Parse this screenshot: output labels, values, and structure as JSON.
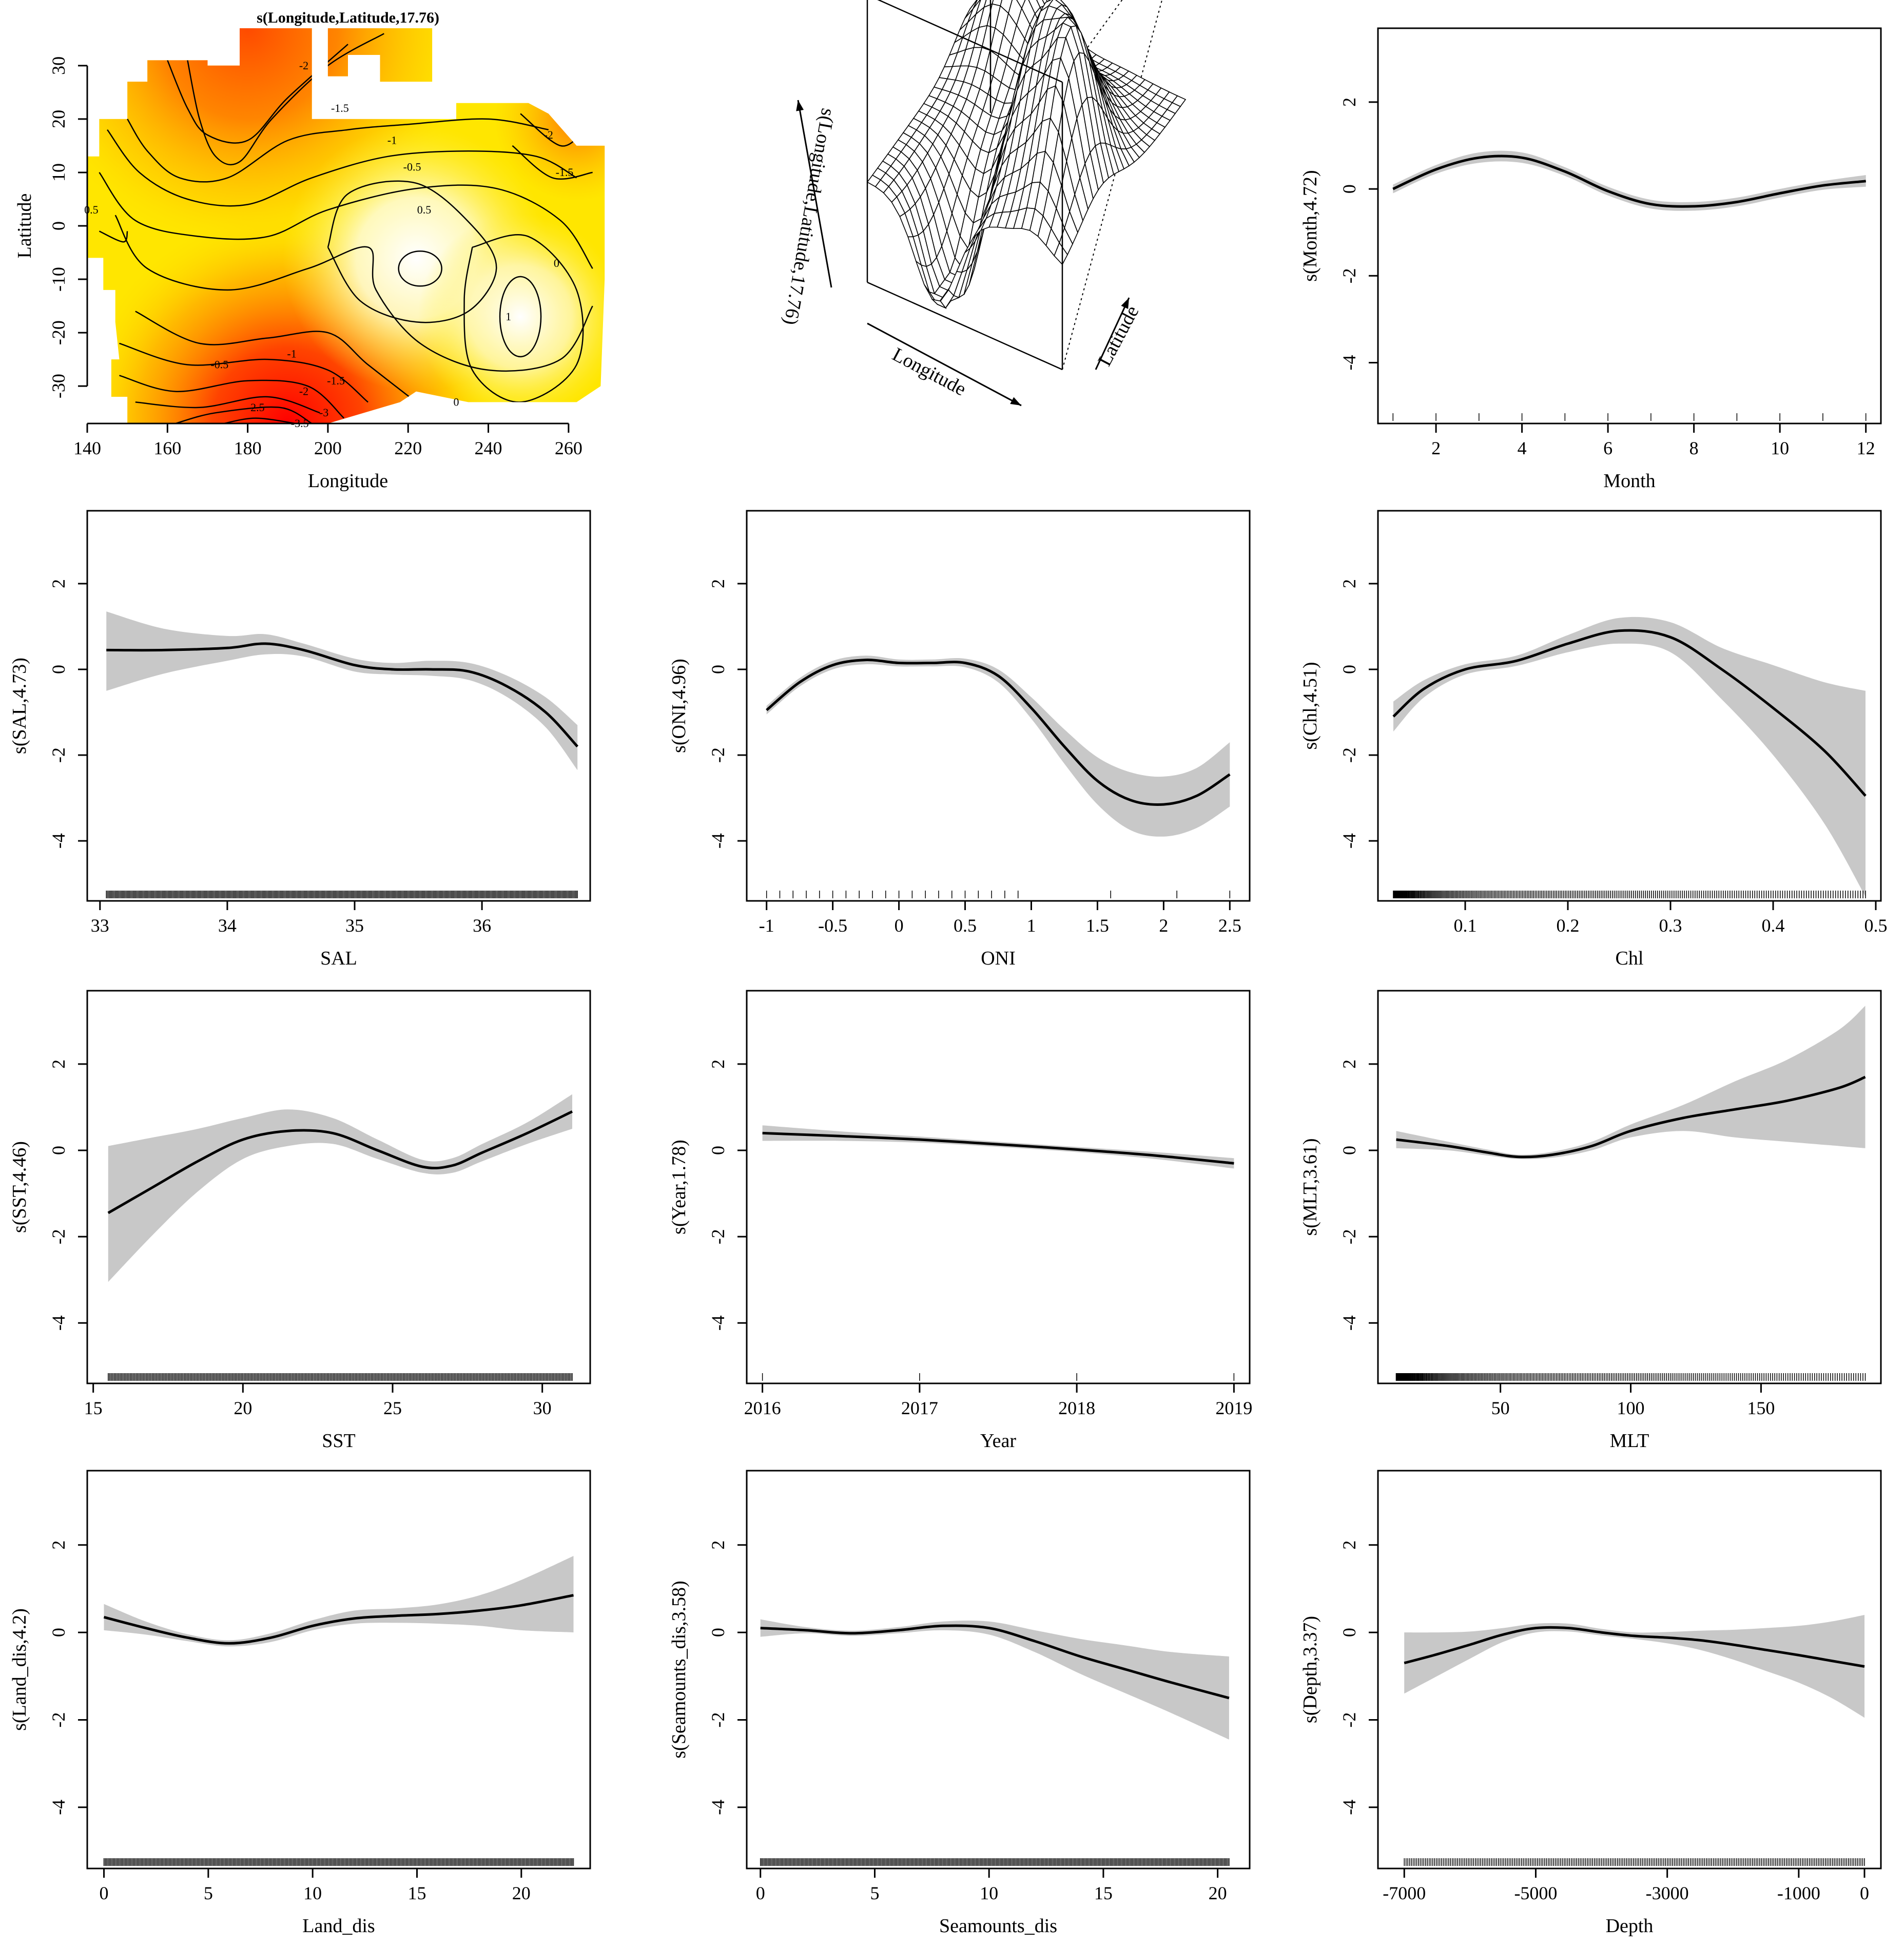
{
  "chart_data": [
    {
      "type": "heatmap",
      "title": "s(Longitude,Latitude,17.76)",
      "xlabel": "Longitude",
      "ylabel": "Latitude",
      "xlim": [
        140,
        270
      ],
      "ylim": [
        -37,
        37
      ],
      "x_ticks": [
        140,
        160,
        180,
        200,
        220,
        240,
        260
      ],
      "y_ticks": [
        -30,
        -20,
        -10,
        0,
        10,
        20,
        30
      ],
      "contour_levels": [
        "-3.5",
        "-3",
        "-2.5",
        "-2",
        "-1.5",
        "-1",
        "-0.5",
        "0",
        "0.5",
        "1"
      ],
      "contour_labels": [
        {
          "text": "-2",
          "lon": 194,
          "lat": 30
        },
        {
          "text": "-1.5",
          "lon": 203,
          "lat": 22
        },
        {
          "text": "-1",
          "lon": 216,
          "lat": 16
        },
        {
          "text": "-0.5",
          "lon": 221,
          "lat": 11
        },
        {
          "text": "0.5",
          "lon": 224,
          "lat": 3
        },
        {
          "text": "0",
          "lon": 257,
          "lat": -7
        },
        {
          "text": "-2",
          "lon": 255,
          "lat": 17
        },
        {
          "text": "-1.5",
          "lon": 259,
          "lat": 10
        },
        {
          "text": "1",
          "lon": 245,
          "lat": -17
        },
        {
          "text": "-0.5",
          "lon": 173,
          "lat": -26
        },
        {
          "text": "-1",
          "lon": 191,
          "lat": -24
        },
        {
          "text": "-1.5",
          "lon": 202,
          "lat": -29
        },
        {
          "text": "-2",
          "lon": 194,
          "lat": -31
        },
        {
          "text": "-2.5",
          "lon": 182,
          "lat": -34
        },
        {
          "text": "-3",
          "lon": 199,
          "lat": -35
        },
        {
          "text": "0",
          "lon": 232,
          "lat": -33
        },
        {
          "text": "0.5",
          "lon": 141,
          "lat": 3
        },
        {
          "text": "-3.5",
          "lon": 193,
          "lat": -37
        }
      ]
    },
    {
      "type": "surface",
      "zlabel": "s(Longitude,Latitude,17.76)",
      "xlabel": "Longitude",
      "ylabel": "Latitude"
    },
    {
      "type": "line",
      "xlabel": "Month",
      "ylabel": "s(Month,4.72)",
      "xlim": [
        0.65,
        12.35
      ],
      "ylim": [
        -5.4,
        3.7
      ],
      "x_ticks": [
        2,
        4,
        6,
        8,
        10,
        12
      ],
      "y_ticks": [
        -4,
        -2,
        0,
        2
      ],
      "x": [
        1,
        2,
        3,
        4,
        5,
        6,
        7,
        8,
        9,
        10,
        11,
        12
      ],
      "fit": [
        0.0,
        0.45,
        0.72,
        0.72,
        0.4,
        -0.05,
        -0.35,
        -0.4,
        -0.3,
        -0.1,
        0.08,
        0.18
      ],
      "lower": [
        -0.1,
        0.35,
        0.6,
        0.6,
        0.3,
        -0.15,
        -0.45,
        -0.5,
        -0.4,
        -0.2,
        -0.02,
        0.05
      ],
      "upper": [
        0.1,
        0.55,
        0.84,
        0.84,
        0.5,
        0.05,
        -0.25,
        -0.3,
        -0.2,
        0.0,
        0.18,
        0.32
      ],
      "rug": [
        1,
        2,
        3,
        4,
        5,
        6,
        7,
        8,
        9,
        10,
        11,
        12
      ]
    },
    {
      "type": "line",
      "xlabel": "SAL",
      "ylabel": "s(SAL,4.73)",
      "xlim": [
        32.9,
        36.85
      ],
      "ylim": [
        -5.4,
        3.7
      ],
      "x_ticks": [
        33,
        34,
        35,
        36
      ],
      "y_ticks": [
        -4,
        -2,
        0,
        2
      ],
      "x": [
        33.05,
        33.5,
        34.0,
        34.3,
        34.6,
        35.0,
        35.3,
        35.6,
        35.9,
        36.2,
        36.5,
        36.75
      ],
      "fit": [
        0.45,
        0.45,
        0.5,
        0.6,
        0.45,
        0.1,
        0.0,
        0.0,
        -0.05,
        -0.4,
        -1.0,
        -1.8
      ],
      "lower": [
        -0.5,
        -0.1,
        0.2,
        0.35,
        0.3,
        -0.05,
        -0.12,
        -0.15,
        -0.25,
        -0.65,
        -1.35,
        -2.35
      ],
      "upper": [
        1.35,
        0.95,
        0.78,
        0.82,
        0.6,
        0.25,
        0.15,
        0.2,
        0.15,
        -0.15,
        -0.65,
        -1.3
      ],
      "rug_range": [
        33.05,
        36.75
      ],
      "rug_count": 420
    },
    {
      "type": "line",
      "xlabel": "ONI",
      "ylabel": "s(ONI,4.96)",
      "xlim": [
        -1.15,
        2.65
      ],
      "ylim": [
        -5.4,
        3.7
      ],
      "x_ticks": [
        -1.0,
        -0.5,
        0.0,
        0.5,
        1.0,
        1.5,
        2.0,
        2.5
      ],
      "y_ticks": [
        -4,
        -2,
        0,
        2
      ],
      "x": [
        -1.0,
        -0.75,
        -0.5,
        -0.25,
        0.0,
        0.25,
        0.5,
        0.75,
        1.0,
        1.25,
        1.5,
        1.75,
        2.0,
        2.25,
        2.5
      ],
      "fit": [
        -0.95,
        -0.3,
        0.1,
        0.22,
        0.15,
        0.15,
        0.15,
        -0.15,
        -0.9,
        -1.8,
        -2.6,
        -3.05,
        -3.15,
        -2.95,
        -2.45
      ],
      "lower": [
        -1.05,
        -0.4,
        0.0,
        0.12,
        0.07,
        0.07,
        0.05,
        -0.3,
        -1.15,
        -2.2,
        -3.15,
        -3.75,
        -3.9,
        -3.7,
        -3.2
      ],
      "upper": [
        -0.85,
        -0.2,
        0.2,
        0.32,
        0.23,
        0.23,
        0.25,
        0.0,
        -0.65,
        -1.4,
        -2.05,
        -2.4,
        -2.5,
        -2.3,
        -1.7
      ],
      "rug": [
        -1.0,
        -0.9,
        -0.8,
        -0.7,
        -0.6,
        -0.5,
        -0.4,
        -0.3,
        -0.2,
        -0.1,
        0.0,
        0.1,
        0.2,
        0.3,
        0.4,
        0.5,
        0.6,
        0.7,
        0.8,
        0.9,
        1.6,
        2.1,
        2.5
      ]
    },
    {
      "type": "line",
      "xlabel": "Chl",
      "ylabel": "s(Chl,4.51)",
      "xlim": [
        0.015,
        0.505
      ],
      "ylim": [
        -5.4,
        3.7
      ],
      "x_ticks": [
        0.1,
        0.2,
        0.3,
        0.4,
        0.5
      ],
      "y_ticks": [
        -4,
        -2,
        0,
        2
      ],
      "x": [
        0.03,
        0.06,
        0.1,
        0.15,
        0.2,
        0.25,
        0.3,
        0.35,
        0.4,
        0.45,
        0.49
      ],
      "fit": [
        -1.1,
        -0.45,
        0.0,
        0.2,
        0.6,
        0.9,
        0.75,
        0.0,
        -0.9,
        -1.9,
        -2.95
      ],
      "lower": [
        -1.45,
        -0.65,
        -0.12,
        0.08,
        0.4,
        0.6,
        0.4,
        -0.7,
        -2.0,
        -3.6,
        -5.3
      ],
      "upper": [
        -0.75,
        -0.25,
        0.12,
        0.32,
        0.8,
        1.2,
        1.1,
        0.5,
        0.1,
        -0.3,
        -0.5
      ],
      "rug_range": [
        0.03,
        0.49
      ],
      "rug_count": 300
    },
    {
      "type": "line",
      "xlabel": "SST",
      "ylabel": "s(SST,4.46)",
      "xlim": [
        14.8,
        31.6
      ],
      "ylim": [
        -5.4,
        3.7
      ],
      "x_ticks": [
        15,
        20,
        25,
        30
      ],
      "y_ticks": [
        -4,
        -2,
        0,
        2
      ],
      "x": [
        15.5,
        17.0,
        18.5,
        20.0,
        21.5,
        23.0,
        24.5,
        26.0,
        27.0,
        28.0,
        29.5,
        31.0
      ],
      "fit": [
        -1.45,
        -0.85,
        -0.25,
        0.25,
        0.45,
        0.4,
        0.0,
        -0.38,
        -0.35,
        -0.05,
        0.4,
        0.9
      ],
      "lower": [
        -3.05,
        -1.95,
        -0.95,
        -0.2,
        0.1,
        0.15,
        -0.2,
        -0.52,
        -0.52,
        -0.25,
        0.15,
        0.5
      ],
      "upper": [
        0.1,
        0.3,
        0.5,
        0.75,
        0.95,
        0.75,
        0.25,
        -0.22,
        -0.18,
        0.15,
        0.65,
        1.3
      ],
      "rug_range": [
        15.5,
        31.0
      ],
      "rug_count": 380
    },
    {
      "type": "line",
      "xlabel": "Year",
      "ylabel": "s(Year,1.78)",
      "xlim": [
        2015.9,
        2019.1
      ],
      "ylim": [
        -5.4,
        3.7
      ],
      "x_ticks": [
        2016,
        2017,
        2018,
        2019
      ],
      "y_ticks": [
        -4,
        -2,
        0,
        2
      ],
      "x": [
        2016,
        2016.5,
        2017,
        2017.5,
        2018,
        2018.5,
        2019
      ],
      "fit": [
        0.4,
        0.33,
        0.25,
        0.14,
        0.02,
        -0.12,
        -0.3
      ],
      "lower": [
        0.22,
        0.22,
        0.18,
        0.08,
        -0.04,
        -0.2,
        -0.42
      ],
      "upper": [
        0.58,
        0.44,
        0.32,
        0.2,
        0.08,
        -0.04,
        -0.18
      ],
      "rug": [
        2016,
        2017,
        2018,
        2019
      ]
    },
    {
      "type": "line",
      "xlabel": "MLT",
      "ylabel": "s(MLT,3.61)",
      "xlim": [
        3,
        196
      ],
      "ylim": [
        -5.4,
        3.7
      ],
      "x_ticks": [
        50,
        100,
        150
      ],
      "y_ticks": [
        -4,
        -2,
        0,
        2
      ],
      "x": [
        10,
        30,
        45,
        57,
        70,
        85,
        100,
        120,
        140,
        160,
        180,
        190
      ],
      "fit": [
        0.25,
        0.1,
        -0.05,
        -0.15,
        -0.1,
        0.1,
        0.45,
        0.75,
        0.95,
        1.15,
        1.45,
        1.7
      ],
      "lower": [
        0.05,
        0.0,
        -0.12,
        -0.2,
        -0.17,
        0.0,
        0.3,
        0.45,
        0.3,
        0.2,
        0.1,
        0.05
      ],
      "upper": [
        0.45,
        0.2,
        0.02,
        -0.1,
        -0.03,
        0.2,
        0.6,
        1.05,
        1.6,
        2.1,
        2.8,
        3.35
      ],
      "rug_range": [
        10,
        190
      ],
      "rug_count": 320
    },
    {
      "type": "line",
      "xlabel": "Land_dis",
      "ylabel": "s(Land_dis,4.2)",
      "xlim": [
        -0.8,
        23.3
      ],
      "ylim": [
        -5.4,
        3.7
      ],
      "x_ticks": [
        0,
        5,
        10,
        15,
        20
      ],
      "y_ticks": [
        -4,
        -2,
        0,
        2
      ],
      "x": [
        0,
        2,
        4,
        6,
        8,
        10,
        12,
        14,
        16,
        18,
        20,
        22.5
      ],
      "fit": [
        0.35,
        0.1,
        -0.12,
        -0.25,
        -0.12,
        0.15,
        0.32,
        0.38,
        0.42,
        0.5,
        0.62,
        0.85
      ],
      "lower": [
        0.05,
        -0.05,
        -0.2,
        -0.32,
        -0.22,
        0.05,
        0.2,
        0.22,
        0.2,
        0.15,
        0.05,
        0.0
      ],
      "upper": [
        0.65,
        0.25,
        -0.04,
        -0.18,
        -0.02,
        0.28,
        0.5,
        0.55,
        0.64,
        0.85,
        1.2,
        1.75
      ],
      "rug_range": [
        0,
        22.5
      ],
      "rug_count": 400
    },
    {
      "type": "line",
      "xlabel": "Seamounts_dis",
      "ylabel": "s(Seamounts_dis,3.58)",
      "xlim": [
        -0.6,
        21.4
      ],
      "ylim": [
        -5.4,
        3.7
      ],
      "x_ticks": [
        0,
        5,
        10,
        15,
        20
      ],
      "y_ticks": [
        -4,
        -2,
        0,
        2
      ],
      "x": [
        0,
        2,
        4,
        6,
        8,
        10,
        12,
        14,
        16,
        18,
        20.5
      ],
      "fit": [
        0.1,
        0.05,
        -0.02,
        0.05,
        0.15,
        0.1,
        -0.2,
        -0.55,
        -0.85,
        -1.15,
        -1.5
      ],
      "lower": [
        -0.1,
        -0.02,
        -0.08,
        -0.02,
        0.05,
        -0.05,
        -0.45,
        -0.95,
        -1.4,
        -1.85,
        -2.45
      ],
      "upper": [
        0.3,
        0.12,
        0.04,
        0.12,
        0.25,
        0.25,
        0.05,
        -0.15,
        -0.3,
        -0.45,
        -0.55
      ],
      "rug_range": [
        0,
        20.5
      ],
      "rug_count": 400
    },
    {
      "type": "line",
      "xlabel": "Depth",
      "ylabel": "s(Depth,3.37)",
      "xlim": [
        -7400,
        250
      ],
      "ylim": [
        -5.4,
        3.7
      ],
      "x_ticks": [
        -7000,
        -5000,
        -3000,
        -1000,
        0
      ],
      "y_ticks": [
        -4,
        -2,
        0,
        2
      ],
      "x": [
        -7000,
        -6500,
        -6000,
        -5500,
        -5000,
        -4500,
        -4000,
        -3500,
        -3000,
        -2500,
        -2000,
        -1500,
        -1000,
        -500,
        0
      ],
      "fit": [
        -0.7,
        -0.5,
        -0.28,
        -0.05,
        0.1,
        0.1,
        0.0,
        -0.08,
        -0.12,
        -0.18,
        -0.28,
        -0.4,
        -0.52,
        -0.65,
        -0.78
      ],
      "lower": [
        -1.4,
        -1.0,
        -0.6,
        -0.22,
        0.0,
        0.02,
        -0.07,
        -0.15,
        -0.25,
        -0.4,
        -0.62,
        -0.88,
        -1.15,
        -1.5,
        -1.95
      ],
      "upper": [
        0.0,
        0.0,
        0.02,
        0.1,
        0.2,
        0.2,
        0.08,
        0.0,
        0.01,
        0.04,
        0.06,
        0.1,
        0.15,
        0.25,
        0.4
      ],
      "rug_range": [
        -7000,
        0
      ],
      "rug_count": 260
    }
  ]
}
